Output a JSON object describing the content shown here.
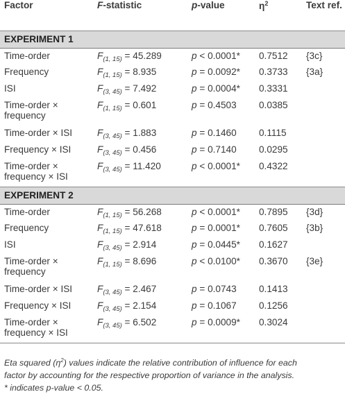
{
  "header": {
    "factor": "Factor",
    "f_letter": "F",
    "f_rest": "-statistic",
    "p_letter": "p",
    "p_rest": "-value",
    "eta": "η",
    "eta_sup": "2",
    "ref": "Text ref."
  },
  "sections": [
    {
      "title": "EXPERIMENT 1",
      "rows": [
        {
          "factor1": "Time-order",
          "factor2": "",
          "df": "(1, 15)",
          "fval": "45.289",
          "prel": "<",
          "pval": "0.0001*",
          "eta": "0.7512",
          "ref": "{3c}"
        },
        {
          "factor1": "Frequency",
          "factor2": "",
          "df": "(1, 15)",
          "fval": "8.935",
          "prel": "=",
          "pval": "0.0092*",
          "eta": "0.3733",
          "ref": "{3a}"
        },
        {
          "factor1": "ISI",
          "factor2": "",
          "df": "(3, 45)",
          "fval": "7.492",
          "prel": "=",
          "pval": "0.0004*",
          "eta": "0.3331",
          "ref": ""
        },
        {
          "factor1": "Time-order ×",
          "factor2": "frequency",
          "df": "(1, 15)",
          "fval": "0.601",
          "prel": "=",
          "pval": "0.4503",
          "eta": "0.0385",
          "ref": ""
        },
        {
          "factor1": "Time-order × ISI",
          "factor2": "",
          "df": "(3, 45)",
          "fval": "1.883",
          "prel": "=",
          "pval": "0.1460",
          "eta": "0.1115",
          "ref": ""
        },
        {
          "factor1": "Frequency × ISI",
          "factor2": "",
          "df": "(3, 45)",
          "fval": "0.456",
          "prel": "=",
          "pval": "0.7140",
          "eta": "0.0295",
          "ref": ""
        },
        {
          "factor1": "Time-order ×",
          "factor2": "frequency × ISI",
          "df": "(3, 45)",
          "fval": "11.420",
          "prel": "<",
          "pval": "0.0001*",
          "eta": "0.4322",
          "ref": ""
        }
      ]
    },
    {
      "title": "EXPERIMENT 2",
      "rows": [
        {
          "factor1": "Time-order",
          "factor2": "",
          "df": "(1, 15)",
          "fval": "56.268",
          "prel": "<",
          "pval": "0.0001*",
          "eta": "0.7895",
          "ref": "{3d}"
        },
        {
          "factor1": "Frequency",
          "factor2": "",
          "df": "(1, 15)",
          "fval": "47.618",
          "prel": "=",
          "pval": "0.0001*",
          "eta": "0.7605",
          "ref": "{3b}"
        },
        {
          "factor1": "ISI",
          "factor2": "",
          "df": "(3, 45)",
          "fval": "2.914",
          "prel": "=",
          "pval": "0.0445*",
          "eta": "0.1627",
          "ref": ""
        },
        {
          "factor1": "Time-order ×",
          "factor2": "frequency",
          "df": "(1, 15)",
          "fval": "8.696",
          "prel": "<",
          "pval": "0.0100*",
          "eta": "0.3670",
          "ref": "{3e}"
        },
        {
          "factor1": "Time-order × ISI",
          "factor2": "",
          "df": "(3, 45)",
          "fval": "2.467",
          "prel": "=",
          "pval": "0.0743",
          "eta": "0.1413",
          "ref": ""
        },
        {
          "factor1": "Frequency × ISI",
          "factor2": "",
          "df": "(3, 45)",
          "fval": "2.154",
          "prel": "=",
          "pval": "0.1067",
          "eta": "0.1256",
          "ref": ""
        },
        {
          "factor1": "Time-order ×",
          "factor2": "frequency × ISI",
          "df": "(3, 45)",
          "fval": "6.502",
          "prel": "=",
          "pval": "0.0009*",
          "eta": "0.3024",
          "ref": ""
        }
      ]
    }
  ],
  "footnote": {
    "line1": "Eta squared (η",
    "sup": "2",
    "line1b": ") values indicate the relative contribution of influence for each",
    "line2": "factor by accounting for the respective proportion of variance in the analysis.",
    "line3": "* indicates p-value < 0.05."
  }
}
